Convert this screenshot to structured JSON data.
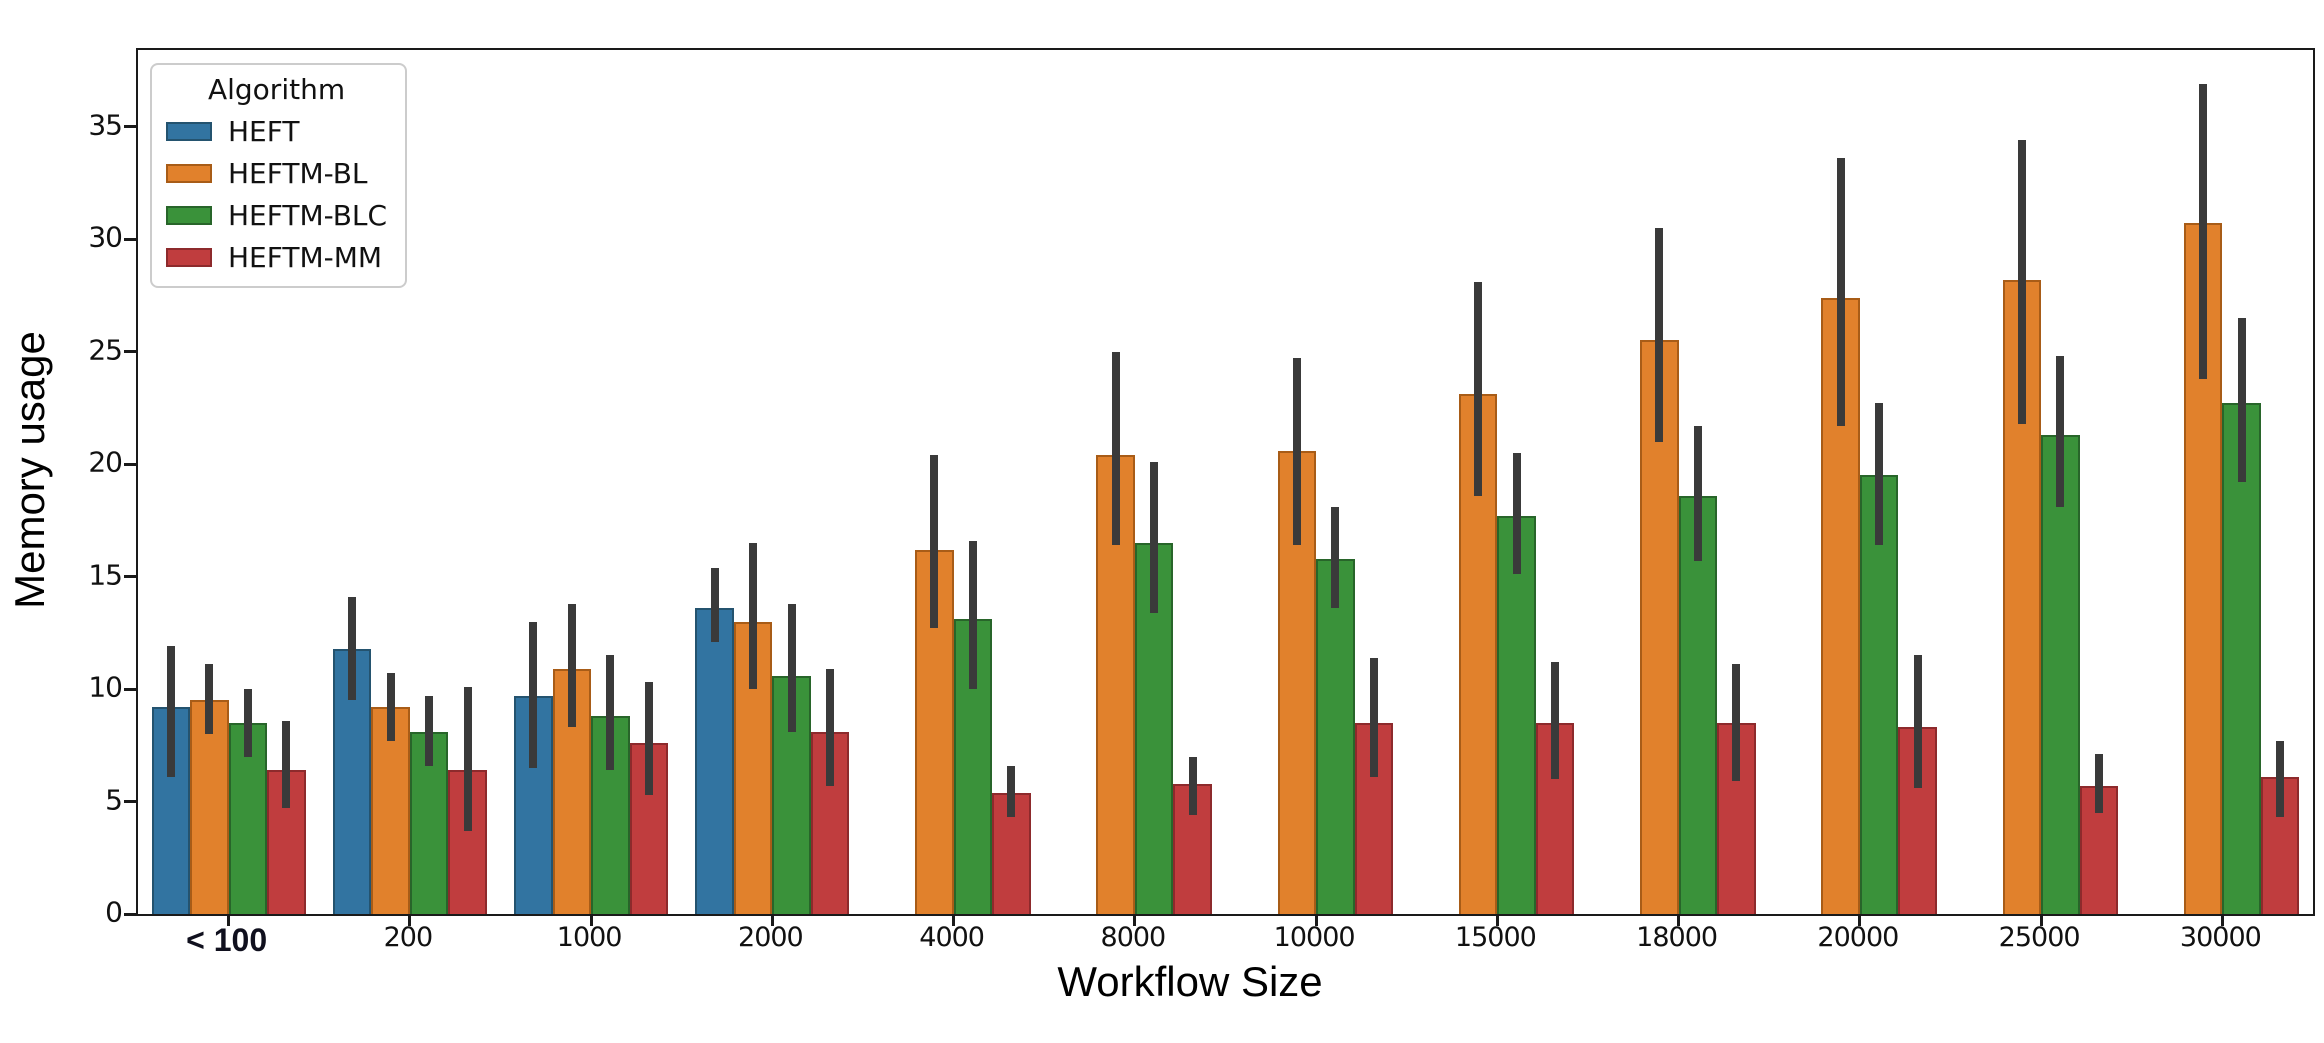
{
  "chart_data": {
    "type": "bar",
    "title": "",
    "xlabel": "Workflow Size",
    "ylabel": "Memory usage",
    "grid": false,
    "background": "#ffffff",
    "ylim": [
      0,
      38.4
    ],
    "yticks": [
      0,
      5,
      10,
      15,
      20,
      25,
      30,
      35
    ],
    "error_bar_color": "#3a3a3a",
    "legend": {
      "title": "Algorithm",
      "position": "upper-left",
      "entries": [
        "HEFT",
        "HEFTM-BL",
        "HEFTM-BLC",
        "HEFTM-MM"
      ]
    },
    "categories": [
      "< 100",
      "200",
      "1000",
      "2000",
      "4000",
      "8000",
      "10000",
      "15000",
      "18000",
      "20000",
      "25000",
      "30000"
    ],
    "series": [
      {
        "name": "HEFT",
        "color": "#3274a1",
        "edge_color": "#24536f",
        "values": [
          9.2,
          11.8,
          9.7,
          13.6,
          null,
          null,
          null,
          null,
          null,
          null,
          null,
          null
        ],
        "err_low": [
          6.1,
          9.5,
          6.5,
          12.1,
          null,
          null,
          null,
          null,
          null,
          null,
          null,
          null
        ],
        "err_high": [
          11.9,
          14.1,
          13.0,
          15.4,
          null,
          null,
          null,
          null,
          null,
          null,
          null,
          null
        ]
      },
      {
        "name": "HEFTM-BL",
        "color": "#e1812c",
        "edge_color": "#a85c17",
        "values": [
          9.5,
          9.2,
          10.9,
          13.0,
          16.2,
          20.4,
          20.6,
          23.1,
          25.5,
          27.4,
          28.2,
          30.7
        ],
        "err_low": [
          8.0,
          7.7,
          8.3,
          10.0,
          12.7,
          16.4,
          16.4,
          18.6,
          21.0,
          21.7,
          21.8,
          23.8
        ],
        "err_high": [
          11.1,
          10.7,
          13.8,
          16.5,
          20.4,
          25.0,
          24.7,
          28.1,
          30.5,
          33.6,
          34.4,
          36.9
        ]
      },
      {
        "name": "HEFTM-BLC",
        "color": "#3a923a",
        "edge_color": "#28652a",
        "values": [
          8.5,
          8.1,
          8.8,
          10.6,
          13.1,
          16.5,
          15.8,
          17.7,
          18.6,
          19.5,
          21.3,
          22.7
        ],
        "err_low": [
          7.0,
          6.6,
          6.4,
          8.1,
          10.0,
          13.4,
          13.6,
          15.1,
          15.7,
          16.4,
          18.1,
          19.2
        ],
        "err_high": [
          10.0,
          9.7,
          11.5,
          13.8,
          16.6,
          20.1,
          18.1,
          20.5,
          21.7,
          22.7,
          24.8,
          26.5
        ]
      },
      {
        "name": "HEFTM-MM",
        "color": "#c03d3e",
        "edge_color": "#8d2a2c",
        "values": [
          6.4,
          6.4,
          7.6,
          8.1,
          5.4,
          5.8,
          8.5,
          8.5,
          8.5,
          8.3,
          5.7,
          6.1
        ],
        "err_low": [
          4.7,
          3.7,
          5.3,
          5.7,
          4.3,
          4.4,
          6.1,
          6.0,
          5.9,
          5.6,
          4.5,
          4.3
        ],
        "err_high": [
          8.6,
          10.1,
          10.3,
          10.9,
          6.6,
          7.0,
          11.4,
          11.2,
          11.1,
          11.5,
          7.1,
          7.7
        ]
      }
    ]
  }
}
